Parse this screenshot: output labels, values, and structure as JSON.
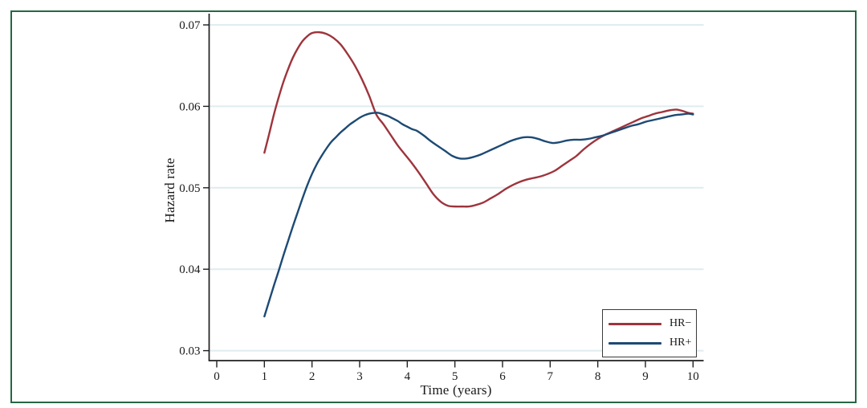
{
  "figure": {
    "border_color": "#276745",
    "background_color": "#ffffff"
  },
  "chart_data": {
    "type": "line",
    "title": "",
    "xlabel": "Time (years)",
    "ylabel": "Hazard rate",
    "xlim": [
      0,
      10
    ],
    "ylim": [
      0.03,
      0.07
    ],
    "x_ticks": [
      0,
      1,
      2,
      3,
      4,
      5,
      6,
      7,
      8,
      9,
      10
    ],
    "x_tick_labels": [
      "0",
      "1",
      "2",
      "3",
      "4",
      "5",
      "6",
      "7",
      "8",
      "9",
      "10"
    ],
    "y_ticks": [
      0.03,
      0.04,
      0.05,
      0.06,
      0.07
    ],
    "y_tick_labels": [
      "0.03",
      "0.04",
      "0.05",
      "0.06",
      "0.07"
    ],
    "grid": "horizontal gridlines at each y tick, very pale",
    "gridline_color": "#dfecef",
    "axis_color": "#1f1f1f",
    "text_color": "#1a1a1a",
    "legend_position": "inside bottom-right",
    "legend_border_color": "#3b3b3b",
    "series": [
      {
        "name": "HR−",
        "color": "#9e343c",
        "points": [
          [
            1.0,
            0.0543
          ],
          [
            1.1,
            0.0566
          ],
          [
            1.2,
            0.059
          ],
          [
            1.3,
            0.0611
          ],
          [
            1.4,
            0.063
          ],
          [
            1.5,
            0.0646
          ],
          [
            1.6,
            0.066
          ],
          [
            1.7,
            0.0671
          ],
          [
            1.8,
            0.068
          ],
          [
            1.9,
            0.0686
          ],
          [
            2.0,
            0.069
          ],
          [
            2.15,
            0.0691
          ],
          [
            2.3,
            0.0689
          ],
          [
            2.45,
            0.0684
          ],
          [
            2.6,
            0.0676
          ],
          [
            2.75,
            0.0664
          ],
          [
            2.9,
            0.065
          ],
          [
            3.05,
            0.0633
          ],
          [
            3.2,
            0.0613
          ],
          [
            3.35,
            0.059
          ],
          [
            3.5,
            0.0578
          ],
          [
            3.65,
            0.0565
          ],
          [
            3.8,
            0.0552
          ],
          [
            3.95,
            0.0541
          ],
          [
            4.1,
            0.053
          ],
          [
            4.25,
            0.0518
          ],
          [
            4.4,
            0.0505
          ],
          [
            4.55,
            0.0492
          ],
          [
            4.7,
            0.0483
          ],
          [
            4.85,
            0.0478
          ],
          [
            5.0,
            0.0477
          ],
          [
            5.15,
            0.0477
          ],
          [
            5.3,
            0.0477
          ],
          [
            5.45,
            0.0479
          ],
          [
            5.6,
            0.0482
          ],
          [
            5.75,
            0.0487
          ],
          [
            5.9,
            0.0492
          ],
          [
            6.05,
            0.0498
          ],
          [
            6.2,
            0.0503
          ],
          [
            6.35,
            0.0507
          ],
          [
            6.5,
            0.051
          ],
          [
            6.65,
            0.0512
          ],
          [
            6.8,
            0.0514
          ],
          [
            6.95,
            0.0517
          ],
          [
            7.1,
            0.0521
          ],
          [
            7.25,
            0.0527
          ],
          [
            7.4,
            0.0533
          ],
          [
            7.55,
            0.0539
          ],
          [
            7.7,
            0.0547
          ],
          [
            7.85,
            0.0554
          ],
          [
            8.0,
            0.056
          ],
          [
            8.15,
            0.0565
          ],
          [
            8.3,
            0.0569
          ],
          [
            8.45,
            0.0573
          ],
          [
            8.6,
            0.0577
          ],
          [
            8.75,
            0.0581
          ],
          [
            8.9,
            0.0585
          ],
          [
            9.05,
            0.0588
          ],
          [
            9.2,
            0.0591
          ],
          [
            9.35,
            0.0593
          ],
          [
            9.5,
            0.0595
          ],
          [
            9.65,
            0.0596
          ],
          [
            9.8,
            0.0594
          ],
          [
            9.9,
            0.0592
          ],
          [
            10.0,
            0.0591
          ]
        ]
      },
      {
        "name": "HR+",
        "color": "#1d4a74",
        "points": [
          [
            1.0,
            0.0342
          ],
          [
            1.1,
            0.0361
          ],
          [
            1.2,
            0.038
          ],
          [
            1.3,
            0.0398
          ],
          [
            1.4,
            0.0417
          ],
          [
            1.5,
            0.0435
          ],
          [
            1.6,
            0.0453
          ],
          [
            1.7,
            0.047
          ],
          [
            1.8,
            0.0487
          ],
          [
            1.9,
            0.0503
          ],
          [
            2.0,
            0.0517
          ],
          [
            2.1,
            0.0529
          ],
          [
            2.2,
            0.0539
          ],
          [
            2.3,
            0.0548
          ],
          [
            2.4,
            0.0556
          ],
          [
            2.5,
            0.0562
          ],
          [
            2.6,
            0.0568
          ],
          [
            2.7,
            0.0573
          ],
          [
            2.8,
            0.0578
          ],
          [
            2.9,
            0.0582
          ],
          [
            3.0,
            0.0586
          ],
          [
            3.1,
            0.0589
          ],
          [
            3.2,
            0.0591
          ],
          [
            3.3,
            0.0592
          ],
          [
            3.4,
            0.0592
          ],
          [
            3.5,
            0.059
          ],
          [
            3.6,
            0.0588
          ],
          [
            3.7,
            0.0585
          ],
          [
            3.8,
            0.0582
          ],
          [
            3.9,
            0.0578
          ],
          [
            4.0,
            0.0575
          ],
          [
            4.1,
            0.0572
          ],
          [
            4.2,
            0.057
          ],
          [
            4.35,
            0.0564
          ],
          [
            4.5,
            0.0557
          ],
          [
            4.65,
            0.0551
          ],
          [
            4.8,
            0.0545
          ],
          [
            4.95,
            0.0539
          ],
          [
            5.1,
            0.0536
          ],
          [
            5.25,
            0.0536
          ],
          [
            5.4,
            0.0538
          ],
          [
            5.55,
            0.0541
          ],
          [
            5.7,
            0.0545
          ],
          [
            5.85,
            0.0549
          ],
          [
            6.0,
            0.0553
          ],
          [
            6.15,
            0.0557
          ],
          [
            6.3,
            0.056
          ],
          [
            6.45,
            0.0562
          ],
          [
            6.6,
            0.0562
          ],
          [
            6.75,
            0.056
          ],
          [
            6.9,
            0.0557
          ],
          [
            7.05,
            0.0555
          ],
          [
            7.2,
            0.0556
          ],
          [
            7.35,
            0.0558
          ],
          [
            7.5,
            0.0559
          ],
          [
            7.65,
            0.0559
          ],
          [
            7.8,
            0.056
          ],
          [
            7.95,
            0.0562
          ],
          [
            8.1,
            0.0564
          ],
          [
            8.25,
            0.0567
          ],
          [
            8.4,
            0.057
          ],
          [
            8.55,
            0.0573
          ],
          [
            8.7,
            0.0576
          ],
          [
            8.85,
            0.0578
          ],
          [
            9.0,
            0.0581
          ],
          [
            9.15,
            0.0583
          ],
          [
            9.3,
            0.0585
          ],
          [
            9.45,
            0.0587
          ],
          [
            9.6,
            0.0589
          ],
          [
            9.75,
            0.059
          ],
          [
            9.9,
            0.0591
          ],
          [
            10.0,
            0.059
          ]
        ]
      }
    ]
  }
}
